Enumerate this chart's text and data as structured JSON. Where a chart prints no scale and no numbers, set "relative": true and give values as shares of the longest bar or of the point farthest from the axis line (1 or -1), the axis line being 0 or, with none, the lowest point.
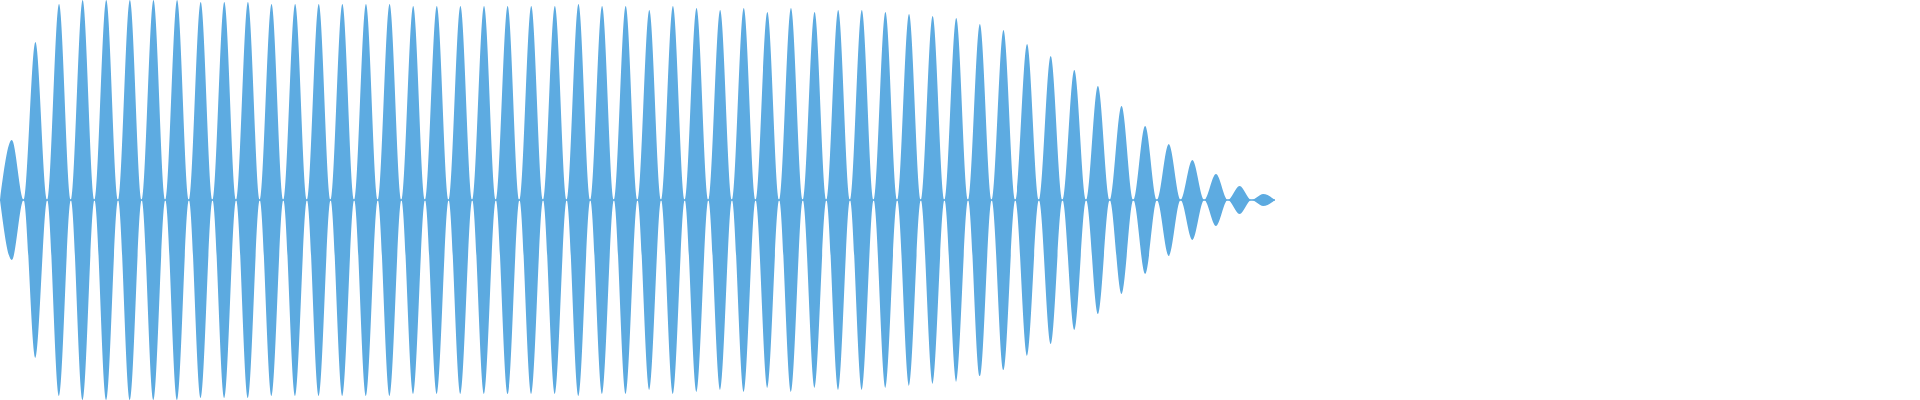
{
  "chart_data": {
    "type": "area",
    "relative": true,
    "categories": [
      null,
      null,
      null,
      null,
      null,
      null,
      null,
      null,
      null,
      null,
      null,
      null,
      null,
      null,
      null,
      null,
      null,
      null,
      null,
      null,
      null,
      null,
      null,
      null,
      null,
      null,
      null,
      null,
      null,
      null,
      null,
      null,
      null,
      null,
      null,
      null,
      null,
      null,
      null,
      null,
      null,
      null,
      null,
      null,
      null,
      null,
      null,
      null,
      null,
      null,
      null,
      null,
      null,
      null,
      null,
      null,
      null,
      null,
      null,
      null,
      null,
      null,
      null,
      null,
      null,
      null,
      null,
      null,
      null,
      null,
      null,
      null,
      null,
      null,
      null,
      null,
      null,
      null,
      null,
      null,
      null,
      null,
      null,
      null,
      null,
      null,
      null,
      null,
      null,
      null,
      null,
      null,
      null,
      null,
      null,
      null,
      null,
      null,
      null,
      null,
      null,
      null,
      null,
      null,
      null,
      null,
      null,
      null,
      null
    ],
    "series": [
      {
        "color": "#5dabe1",
        "values": [
          0,
          0.3,
          0,
          0.79,
          0,
          0.98,
          0,
          1,
          0,
          1,
          0,
          1,
          0,
          1,
          0,
          1,
          0,
          0.99,
          0,
          0.99,
          0,
          0.99,
          0,
          0.98,
          0,
          0.98,
          0,
          0.98,
          0,
          0.98,
          0,
          0.98,
          0,
          0.98,
          0,
          0.97,
          0,
          0.97,
          0,
          0.97,
          0,
          0.97,
          0,
          0.97,
          0,
          0.97,
          0,
          0.97,
          0,
          0.98,
          0,
          0.97,
          0,
          0.97,
          0,
          0.95,
          0,
          0.97,
          0,
          0.96,
          0,
          0.95,
          0,
          0.96,
          0,
          0.94,
          0,
          0.96,
          0,
          0.94,
          0,
          0.95,
          0,
          0.95,
          0,
          0.94,
          0,
          0.93,
          0,
          0.92,
          0,
          0.91,
          0,
          0.88,
          0,
          0.85,
          0,
          0.78,
          0,
          0.72,
          0,
          0.65,
          0,
          0.57,
          0,
          0.47,
          0,
          0.37,
          0,
          0.28,
          0,
          0.2,
          0,
          0.13,
          0,
          0.07,
          0,
          0.03,
          0
        ],
        "type": "area"
      },
      {
        "color": "#5caae0",
        "values": [
          0,
          -0.3,
          0,
          -0.79,
          0,
          -0.98,
          0,
          -1,
          0,
          -1,
          0,
          -1,
          0,
          -1,
          0,
          -1,
          0,
          -0.99,
          0,
          -0.99,
          0,
          -0.99,
          0,
          -0.98,
          0,
          -0.98,
          0,
          -0.98,
          0,
          -0.98,
          0,
          -0.98,
          0,
          -0.98,
          0,
          -0.97,
          0,
          -0.97,
          0,
          -0.97,
          0,
          -0.97,
          0,
          -0.97,
          0,
          -0.97,
          0,
          -0.97,
          0,
          -0.98,
          0,
          -0.97,
          0,
          -0.97,
          0,
          -0.95,
          0,
          -0.97,
          0,
          -0.96,
          0,
          -0.95,
          0,
          -0.96,
          0,
          -0.94,
          0,
          -0.96,
          0,
          -0.94,
          0,
          -0.95,
          0,
          -0.95,
          0,
          -0.94,
          0,
          -0.93,
          0,
          -0.92,
          0,
          -0.91,
          0,
          -0.88,
          0,
          -0.85,
          0,
          -0.78,
          0,
          -0.72,
          0,
          -0.65,
          0,
          -0.57,
          0,
          -0.47,
          0,
          -0.37,
          0,
          -0.28,
          0,
          -0.2,
          0,
          -0.13,
          0,
          -0.07,
          0,
          -0.03,
          0
        ]
      }
    ]
  }
}
